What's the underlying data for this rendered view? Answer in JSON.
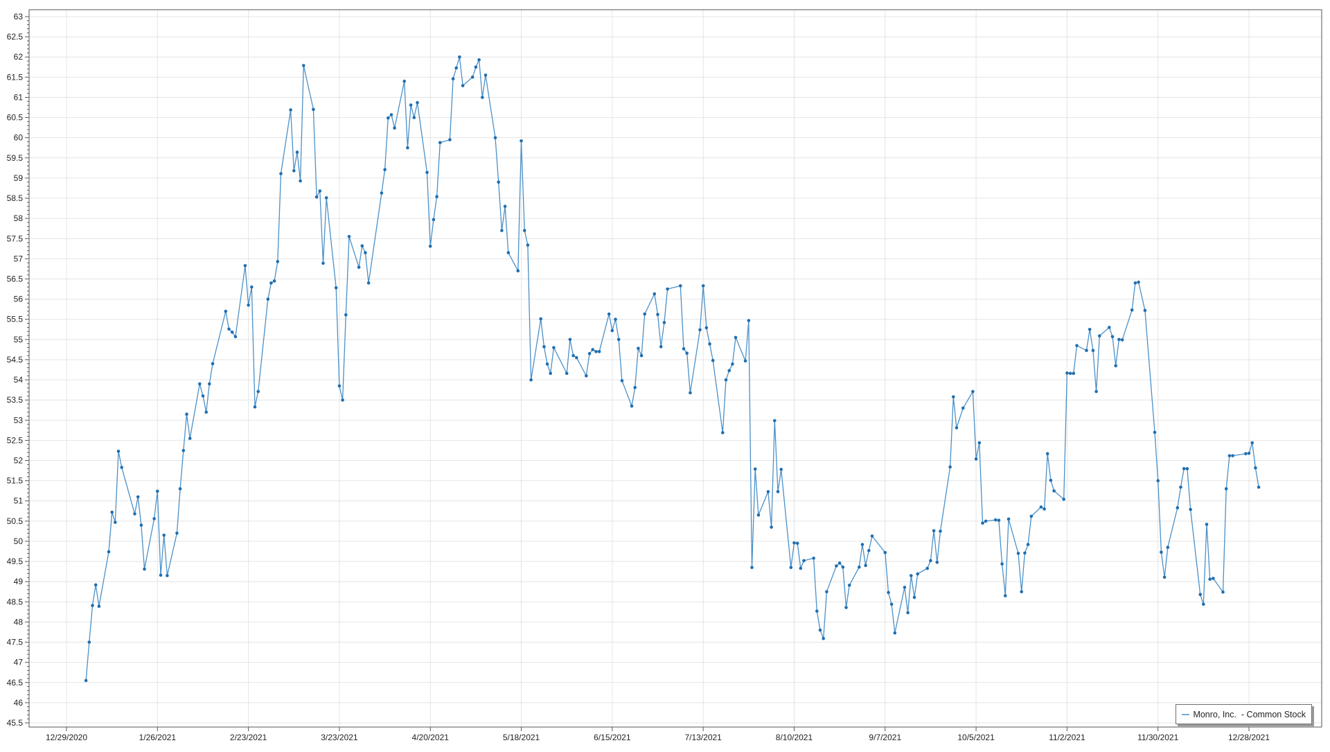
{
  "window": {
    "background": "#ffffff"
  },
  "legend": {
    "label": "Monro, Inc.  - Common Stock",
    "position": "bottom-right"
  },
  "style": {
    "grid_color": "#e4e4e4",
    "axis_border_color": "#555555",
    "tick_color": "#555555",
    "tick_label_color": "#222222",
    "legend_border_color": "#6e6e6e",
    "legend_shadow_color": "#9a9a9a",
    "line_color": "#4a90c8",
    "marker_color": "#1f6eb0"
  },
  "chart_data": {
    "type": "line",
    "title": "",
    "xlabel": "",
    "ylabel": "",
    "grid": true,
    "legend_position": "bottom-right",
    "x_axis_type": "date",
    "x_tick_labels": [
      "12/29/2020",
      "1/26/2021",
      "2/23/2021",
      "3/23/2021",
      "4/20/2021",
      "5/18/2021",
      "6/15/2021",
      "7/13/2021",
      "8/10/2021",
      "9/7/2021",
      "10/5/2021",
      "11/2/2021",
      "11/30/2021",
      "12/28/2021"
    ],
    "x_tick_day_offsets": [
      0,
      28,
      56,
      84,
      112,
      140,
      168,
      196,
      224,
      252,
      280,
      308,
      336,
      364
    ],
    "y_ticks": [
      45.5,
      46,
      46.5,
      47,
      47.5,
      48,
      48.5,
      49,
      49.5,
      50,
      50.5,
      51,
      51.5,
      52,
      52.5,
      53,
      53.5,
      54,
      54.5,
      55,
      55.5,
      56,
      56.5,
      57,
      57.5,
      58,
      58.5,
      59,
      59.5,
      60,
      60.5,
      61,
      61.5,
      62,
      62.5,
      63
    ],
    "y_minor_step": 0.1,
    "ylim": [
      45.4,
      63.17
    ],
    "xlim_days": [
      -11.5,
      386
    ],
    "series": [
      {
        "name": "Monro, Inc.  - Common Stock",
        "color": "#4a90c8",
        "marker_color": "#1f6eb0",
        "points": [
          [
            6,
            46.55
          ],
          [
            7,
            47.5
          ],
          [
            8,
            48.41
          ],
          [
            9,
            48.92
          ],
          [
            10,
            48.39
          ],
          [
            13,
            49.74
          ],
          [
            14,
            50.72
          ],
          [
            15,
            50.47
          ],
          [
            16,
            52.23
          ],
          [
            17,
            51.83
          ],
          [
            21,
            50.68
          ],
          [
            22,
            51.1
          ],
          [
            23,
            50.4
          ],
          [
            24,
            49.31
          ],
          [
            27,
            50.56
          ],
          [
            28,
            51.24
          ],
          [
            29,
            49.16
          ],
          [
            30,
            50.15
          ],
          [
            31,
            49.15
          ],
          [
            34,
            50.2
          ],
          [
            35,
            51.3
          ],
          [
            36,
            52.25
          ],
          [
            37,
            53.15
          ],
          [
            38,
            52.55
          ],
          [
            41,
            53.9
          ],
          [
            42,
            53.6
          ],
          [
            43,
            53.2
          ],
          [
            44,
            53.9
          ],
          [
            45,
            54.4
          ],
          [
            49,
            55.7
          ],
          [
            50,
            55.26
          ],
          [
            51,
            55.18
          ],
          [
            52,
            55.07
          ],
          [
            55,
            56.83
          ],
          [
            56,
            55.85
          ],
          [
            57,
            56.3
          ],
          [
            58,
            53.33
          ],
          [
            59,
            53.71
          ],
          [
            62,
            56.0
          ],
          [
            63,
            56.4
          ],
          [
            64,
            56.45
          ],
          [
            65,
            56.93
          ],
          [
            66,
            59.11
          ],
          [
            69,
            60.69
          ],
          [
            70,
            59.18
          ],
          [
            71,
            59.64
          ],
          [
            72,
            58.93
          ],
          [
            73,
            61.79
          ],
          [
            76,
            60.7
          ],
          [
            77,
            58.53
          ],
          [
            78,
            58.68
          ],
          [
            79,
            56.89
          ],
          [
            80,
            58.51
          ],
          [
            83,
            56.28
          ],
          [
            84,
            53.85
          ],
          [
            85,
            53.5
          ],
          [
            86,
            55.61
          ],
          [
            87,
            57.55
          ],
          [
            90,
            56.79
          ],
          [
            91,
            57.32
          ],
          [
            92,
            57.15
          ],
          [
            93,
            56.4
          ],
          [
            97,
            58.63
          ],
          [
            98,
            59.21
          ],
          [
            99,
            60.49
          ],
          [
            100,
            60.57
          ],
          [
            101,
            60.24
          ],
          [
            104,
            61.4
          ],
          [
            105,
            59.75
          ],
          [
            106,
            60.81
          ],
          [
            107,
            60.5
          ],
          [
            108,
            60.87
          ],
          [
            111,
            59.14
          ],
          [
            112,
            57.31
          ],
          [
            113,
            57.97
          ],
          [
            114,
            58.54
          ],
          [
            115,
            59.88
          ],
          [
            118,
            59.95
          ],
          [
            119,
            61.46
          ],
          [
            120,
            61.73
          ],
          [
            121,
            62.0
          ],
          [
            122,
            61.29
          ],
          [
            125,
            61.5
          ],
          [
            126,
            61.75
          ],
          [
            127,
            61.93
          ],
          [
            128,
            61.0
          ],
          [
            129,
            61.55
          ],
          [
            132,
            60.0
          ],
          [
            133,
            58.9
          ],
          [
            134,
            57.7
          ],
          [
            135,
            58.3
          ],
          [
            136,
            57.15
          ],
          [
            139,
            56.7
          ],
          [
            140,
            59.92
          ],
          [
            141,
            57.7
          ],
          [
            142,
            57.34
          ],
          [
            143,
            54.0
          ],
          [
            146,
            55.51
          ],
          [
            147,
            54.82
          ],
          [
            148,
            54.39
          ],
          [
            149,
            54.16
          ],
          [
            150,
            54.8
          ],
          [
            154,
            54.16
          ],
          [
            155,
            55.0
          ],
          [
            156,
            54.6
          ],
          [
            157,
            54.55
          ],
          [
            160,
            54.1
          ],
          [
            161,
            54.65
          ],
          [
            162,
            54.75
          ],
          [
            163,
            54.7
          ],
          [
            164,
            54.7
          ],
          [
            167,
            55.63
          ],
          [
            168,
            55.22
          ],
          [
            169,
            55.5
          ],
          [
            170,
            55.0
          ],
          [
            171,
            53.98
          ],
          [
            174,
            53.35
          ],
          [
            175,
            53.81
          ],
          [
            176,
            54.78
          ],
          [
            177,
            54.6
          ],
          [
            178,
            55.63
          ],
          [
            181,
            56.13
          ],
          [
            182,
            55.62
          ],
          [
            183,
            54.82
          ],
          [
            184,
            55.42
          ],
          [
            185,
            56.25
          ],
          [
            189,
            56.33
          ],
          [
            190,
            54.77
          ],
          [
            191,
            54.66
          ],
          [
            192,
            53.68
          ],
          [
            195,
            55.24
          ],
          [
            196,
            56.33
          ],
          [
            197,
            55.29
          ],
          [
            198,
            54.89
          ],
          [
            199,
            54.48
          ],
          [
            202,
            52.69
          ],
          [
            203,
            54.0
          ],
          [
            204,
            54.23
          ],
          [
            205,
            54.39
          ],
          [
            206,
            55.05
          ],
          [
            209,
            54.47
          ],
          [
            210,
            55.47
          ],
          [
            211,
            49.35
          ],
          [
            212,
            51.79
          ],
          [
            213,
            50.65
          ],
          [
            216,
            51.23
          ],
          [
            217,
            50.35
          ],
          [
            218,
            52.99
          ],
          [
            219,
            51.23
          ],
          [
            220,
            51.78
          ],
          [
            223,
            49.35
          ],
          [
            224,
            49.96
          ],
          [
            225,
            49.95
          ],
          [
            226,
            49.33
          ],
          [
            227,
            49.52
          ],
          [
            230,
            49.58
          ],
          [
            231,
            48.27
          ],
          [
            232,
            47.8
          ],
          [
            233,
            47.59
          ],
          [
            234,
            48.75
          ],
          [
            237,
            49.39
          ],
          [
            238,
            49.46
          ],
          [
            239,
            49.36
          ],
          [
            240,
            48.36
          ],
          [
            241,
            48.91
          ],
          [
            244,
            49.36
          ],
          [
            245,
            49.92
          ],
          [
            246,
            49.4
          ],
          [
            247,
            49.77
          ],
          [
            248,
            50.13
          ],
          [
            252,
            49.72
          ],
          [
            253,
            48.73
          ],
          [
            254,
            48.44
          ],
          [
            255,
            47.73
          ],
          [
            258,
            48.86
          ],
          [
            259,
            48.23
          ],
          [
            260,
            49.15
          ],
          [
            261,
            48.61
          ],
          [
            262,
            49.19
          ],
          [
            265,
            49.33
          ],
          [
            266,
            49.52
          ],
          [
            267,
            50.26
          ],
          [
            268,
            49.48
          ],
          [
            269,
            50.25
          ],
          [
            272,
            51.84
          ],
          [
            273,
            53.58
          ],
          [
            274,
            52.81
          ],
          [
            276,
            53.3
          ],
          [
            279,
            53.71
          ],
          [
            280,
            52.04
          ],
          [
            281,
            52.44
          ],
          [
            282,
            50.45
          ],
          [
            283,
            50.5
          ],
          [
            286,
            50.53
          ],
          [
            287,
            50.52
          ],
          [
            288,
            49.44
          ],
          [
            289,
            48.65
          ],
          [
            290,
            50.55
          ],
          [
            293,
            49.7
          ],
          [
            294,
            48.75
          ],
          [
            295,
            49.71
          ],
          [
            296,
            49.92
          ],
          [
            297,
            50.62
          ],
          [
            300,
            50.85
          ],
          [
            301,
            50.8
          ],
          [
            302,
            52.17
          ],
          [
            303,
            51.51
          ],
          [
            304,
            51.25
          ],
          [
            307,
            51.04
          ],
          [
            308,
            54.17
          ],
          [
            309,
            54.16
          ],
          [
            310,
            54.16
          ],
          [
            311,
            54.85
          ],
          [
            314,
            54.73
          ],
          [
            315,
            55.25
          ],
          [
            316,
            54.73
          ],
          [
            317,
            53.71
          ],
          [
            318,
            55.09
          ],
          [
            321,
            55.3
          ],
          [
            322,
            55.07
          ],
          [
            323,
            54.35
          ],
          [
            324,
            55.0
          ],
          [
            325,
            54.99
          ],
          [
            328,
            55.73
          ],
          [
            329,
            56.4
          ],
          [
            330,
            56.42
          ],
          [
            332,
            55.72
          ],
          [
            335,
            52.7
          ],
          [
            336,
            51.5
          ],
          [
            337,
            49.73
          ],
          [
            338,
            49.11
          ],
          [
            339,
            49.85
          ],
          [
            342,
            50.83
          ],
          [
            343,
            51.34
          ],
          [
            344,
            51.8
          ],
          [
            345,
            51.8
          ],
          [
            346,
            50.79
          ],
          [
            349,
            48.68
          ],
          [
            350,
            48.44
          ],
          [
            351,
            50.42
          ],
          [
            352,
            49.06
          ],
          [
            353,
            49.08
          ],
          [
            356,
            48.74
          ],
          [
            357,
            51.3
          ],
          [
            358,
            52.12
          ],
          [
            359,
            52.12
          ],
          [
            363,
            52.17
          ],
          [
            364,
            52.18
          ],
          [
            365,
            52.44
          ],
          [
            366,
            51.82
          ],
          [
            367,
            51.34
          ]
        ]
      }
    ]
  }
}
